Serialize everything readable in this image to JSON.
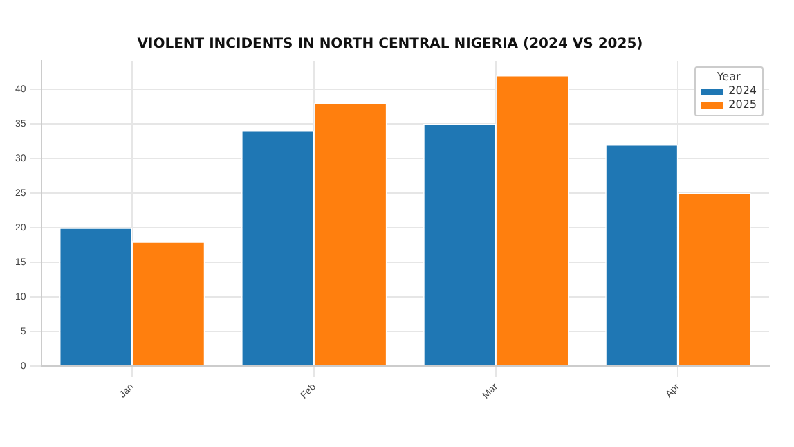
{
  "chart_data": {
    "type": "bar",
    "title": "VIOLENT INCIDENTS IN NORTH CENTRAL NIGERIA (2024 VS 2025)",
    "categories": [
      "Jan",
      "Feb",
      "Mar",
      "Apr"
    ],
    "series": [
      {
        "name": "2024",
        "color": "#1f77b4",
        "values": [
          20,
          34,
          35,
          32
        ]
      },
      {
        "name": "2025",
        "color": "#ff7f0e",
        "values": [
          18,
          38,
          42,
          25
        ]
      }
    ],
    "legend_title": "Year",
    "legend": "top right",
    "ylim": [
      0,
      44.1
    ],
    "yticks": [
      0,
      5,
      10,
      15,
      20,
      25,
      30,
      35,
      40
    ],
    "grid": true
  }
}
